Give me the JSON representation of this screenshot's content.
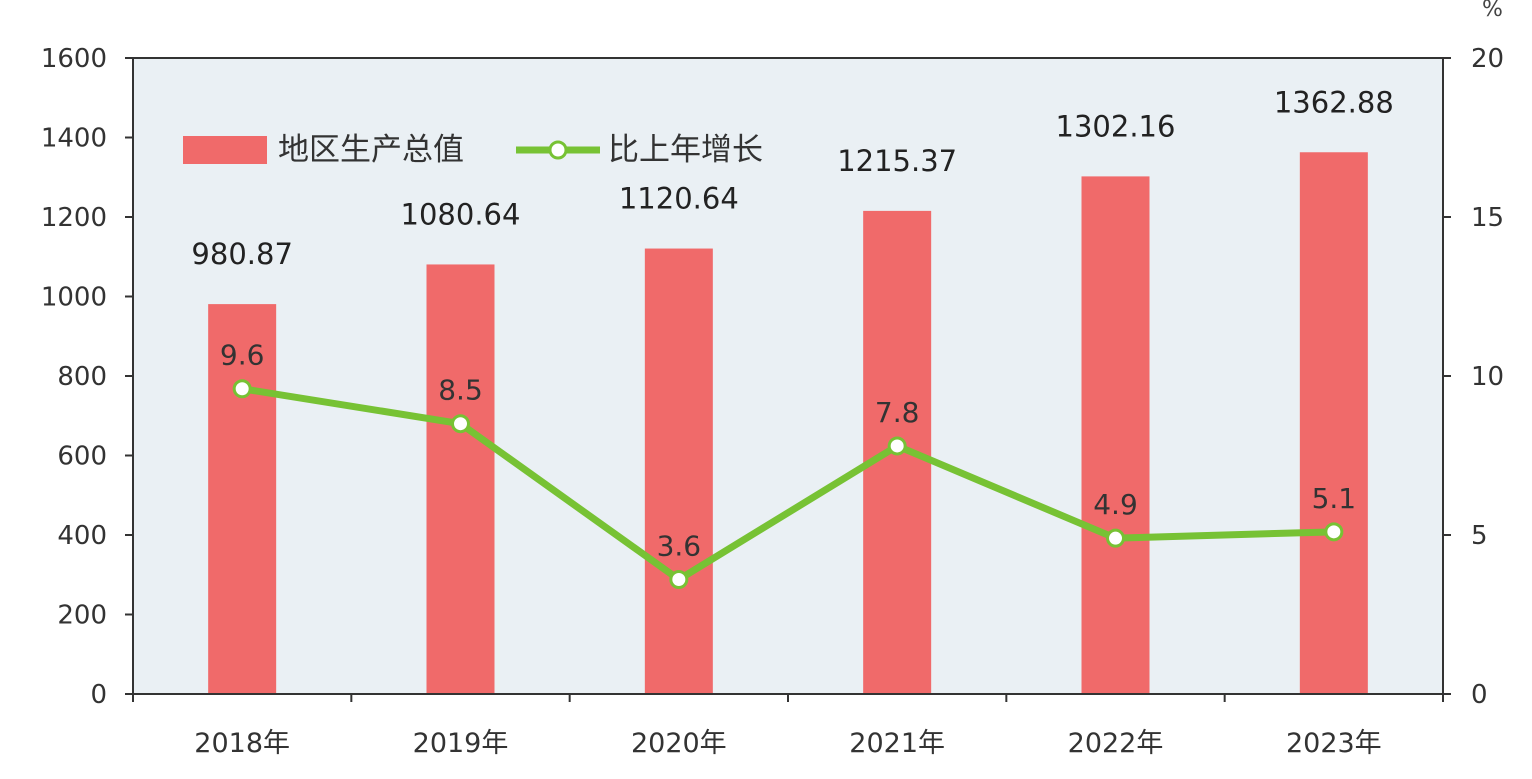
{
  "chart_data": {
    "type": "bar",
    "categories": [
      "2018年",
      "2019年",
      "2020年",
      "2021年",
      "2022年",
      "2023年"
    ],
    "series": [
      {
        "name": "地区生产总值",
        "type": "bar",
        "axis": "left",
        "values": [
          980.87,
          1080.64,
          1120.64,
          1215.37,
          1302.16,
          1362.88
        ],
        "labels": [
          "980.87",
          "1080.64",
          "1120.64",
          "1215.37",
          "1302.16",
          "1362.88"
        ],
        "color": "#f06a6a"
      },
      {
        "name": "比上年增长",
        "type": "line",
        "axis": "right",
        "values": [
          9.6,
          8.5,
          3.6,
          7.8,
          4.9,
          5.1
        ],
        "labels": [
          "9.6",
          "8.5",
          "3.6",
          "7.8",
          "4.9",
          "5.1"
        ],
        "color": "#77c234"
      }
    ],
    "y_left": {
      "min": 0,
      "max": 1600,
      "ticks": [
        "0",
        "200",
        "400",
        "600",
        "800",
        "1000",
        "1200",
        "1400",
        "1600"
      ]
    },
    "y_right": {
      "min": 0,
      "max": 20,
      "unit": "%",
      "ticks": [
        "0",
        "5",
        "10",
        "15",
        "20"
      ]
    },
    "legend_position": "top-left",
    "grid": false,
    "plot_background": "#eaf0f4"
  }
}
